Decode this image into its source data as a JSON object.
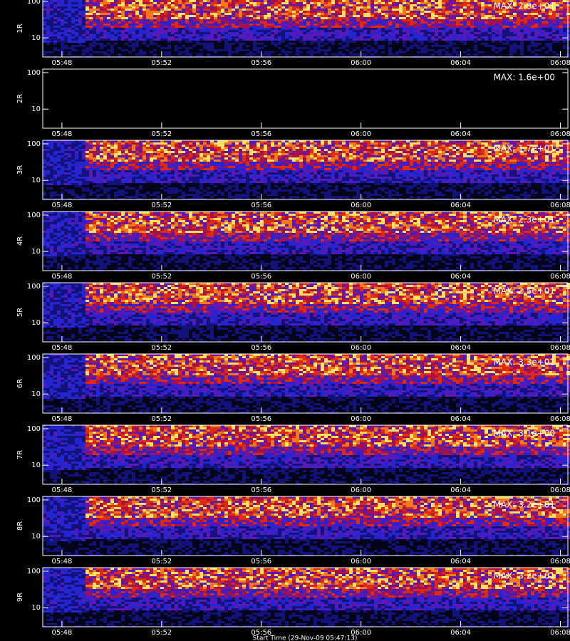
{
  "chart_data": [
    {
      "type": "spectrogram",
      "ylabel": "1R",
      "annotation": "MAX: 2.0e+01",
      "log_y": true,
      "xlim": [
        347.23,
        368.3
      ],
      "ylim": [
        3,
        125
      ],
      "yticks": [
        10,
        100
      ],
      "xticks": [
        {
          "value": 348,
          "label": "05:48"
        },
        {
          "value": 352,
          "label": "05:52"
        },
        {
          "value": 356,
          "label": "05:56"
        },
        {
          "value": 360,
          "label": "06:00"
        },
        {
          "value": 364,
          "label": "06:04"
        },
        {
          "value": 368,
          "label": "06:08"
        }
      ]
    },
    {
      "type": "spectrogram",
      "ylabel": "2R",
      "annotation": "MAX: 1.6e+00",
      "log_y": true,
      "xlim": [
        347.23,
        368.3
      ],
      "ylim": [
        3,
        125
      ],
      "yticks": [
        10,
        100
      ],
      "xticks": [
        {
          "value": 348,
          "label": "05:48"
        },
        {
          "value": 352,
          "label": "05:52"
        },
        {
          "value": 356,
          "label": "05:56"
        },
        {
          "value": 360,
          "label": "06:00"
        },
        {
          "value": 364,
          "label": "06:04"
        },
        {
          "value": 368,
          "label": "06:08"
        }
      ]
    },
    {
      "type": "spectrogram",
      "ylabel": "3R",
      "annotation": "MAX: 1.7e+01",
      "log_y": true,
      "xlim": [
        347.23,
        368.3
      ],
      "ylim": [
        3,
        125
      ],
      "yticks": [
        10,
        100
      ],
      "xticks": [
        {
          "value": 348,
          "label": "05:48"
        },
        {
          "value": 352,
          "label": "05:52"
        },
        {
          "value": 356,
          "label": "05:56"
        },
        {
          "value": 360,
          "label": "06:00"
        },
        {
          "value": 364,
          "label": "06:04"
        },
        {
          "value": 368,
          "label": "06:08"
        }
      ]
    },
    {
      "type": "spectrogram",
      "ylabel": "4R",
      "annotation": "MAX: 2.3e+01",
      "log_y": true,
      "xlim": [
        347.23,
        368.3
      ],
      "ylim": [
        3,
        125
      ],
      "yticks": [
        10,
        100
      ],
      "xticks": [
        {
          "value": 348,
          "label": "05:48"
        },
        {
          "value": 352,
          "label": "05:52"
        },
        {
          "value": 356,
          "label": "05:56"
        },
        {
          "value": 360,
          "label": "06:00"
        },
        {
          "value": 364,
          "label": "06:04"
        },
        {
          "value": 368,
          "label": "06:08"
        }
      ]
    },
    {
      "type": "spectrogram",
      "ylabel": "5R",
      "annotation": "MAX: 2.5e+01",
      "log_y": true,
      "xlim": [
        347.23,
        368.3
      ],
      "ylim": [
        3,
        125
      ],
      "yticks": [
        10,
        100
      ],
      "xticks": [
        {
          "value": 348,
          "label": "05:48"
        },
        {
          "value": 352,
          "label": "05:52"
        },
        {
          "value": 356,
          "label": "05:56"
        },
        {
          "value": 360,
          "label": "06:00"
        },
        {
          "value": 364,
          "label": "06:04"
        },
        {
          "value": 368,
          "label": "06:08"
        }
      ]
    },
    {
      "type": "spectrogram",
      "ylabel": "6R",
      "annotation": "MAX: 3.3e+01",
      "log_y": true,
      "xlim": [
        347.23,
        368.3
      ],
      "ylim": [
        3,
        125
      ],
      "yticks": [
        10,
        100
      ],
      "xticks": [
        {
          "value": 348,
          "label": "05:48"
        },
        {
          "value": 352,
          "label": "05:52"
        },
        {
          "value": 356,
          "label": "05:56"
        },
        {
          "value": 360,
          "label": "06:00"
        },
        {
          "value": 364,
          "label": "06:04"
        },
        {
          "value": 368,
          "label": "06:08"
        }
      ]
    },
    {
      "type": "spectrogram",
      "ylabel": "7R",
      "annotation": "MAX: 3.1e+00",
      "log_y": true,
      "xlim": [
        347.23,
        368.3
      ],
      "ylim": [
        3,
        125
      ],
      "yticks": [
        10,
        100
      ],
      "xticks": [
        {
          "value": 348,
          "label": "05:48"
        },
        {
          "value": 352,
          "label": "05:52"
        },
        {
          "value": 356,
          "label": "05:56"
        },
        {
          "value": 360,
          "label": "06:00"
        },
        {
          "value": 364,
          "label": "06:04"
        },
        {
          "value": 368,
          "label": "06:08"
        }
      ]
    },
    {
      "type": "spectrogram",
      "ylabel": "8R",
      "annotation": "MAX: 3.2e+01",
      "log_y": true,
      "xlim": [
        347.23,
        368.3
      ],
      "ylim": [
        3,
        125
      ],
      "yticks": [
        10,
        100
      ],
      "xticks": [
        {
          "value": 348,
          "label": "05:48"
        },
        {
          "value": 352,
          "label": "05:52"
        },
        {
          "value": 356,
          "label": "05:56"
        },
        {
          "value": 360,
          "label": "06:00"
        },
        {
          "value": 364,
          "label": "06:04"
        },
        {
          "value": 368,
          "label": "06:08"
        }
      ]
    },
    {
      "type": "spectrogram",
      "ylabel": "9R",
      "annotation": "MAX: 3.2e+01",
      "log_y": true,
      "xlim": [
        347.23,
        368.3
      ],
      "ylim": [
        3,
        125
      ],
      "yticks": [
        10,
        100
      ],
      "xticks": [
        {
          "value": 348,
          "label": "05:48"
        },
        {
          "value": 352,
          "label": "05:52"
        },
        {
          "value": 356,
          "label": "05:56"
        },
        {
          "value": 360,
          "label": "06:00"
        },
        {
          "value": 364,
          "label": "06:04"
        },
        {
          "value": 368,
          "label": "06:08"
        }
      ],
      "xlabel": "Start Time (29-Nov-09 05:47:13)"
    }
  ]
}
